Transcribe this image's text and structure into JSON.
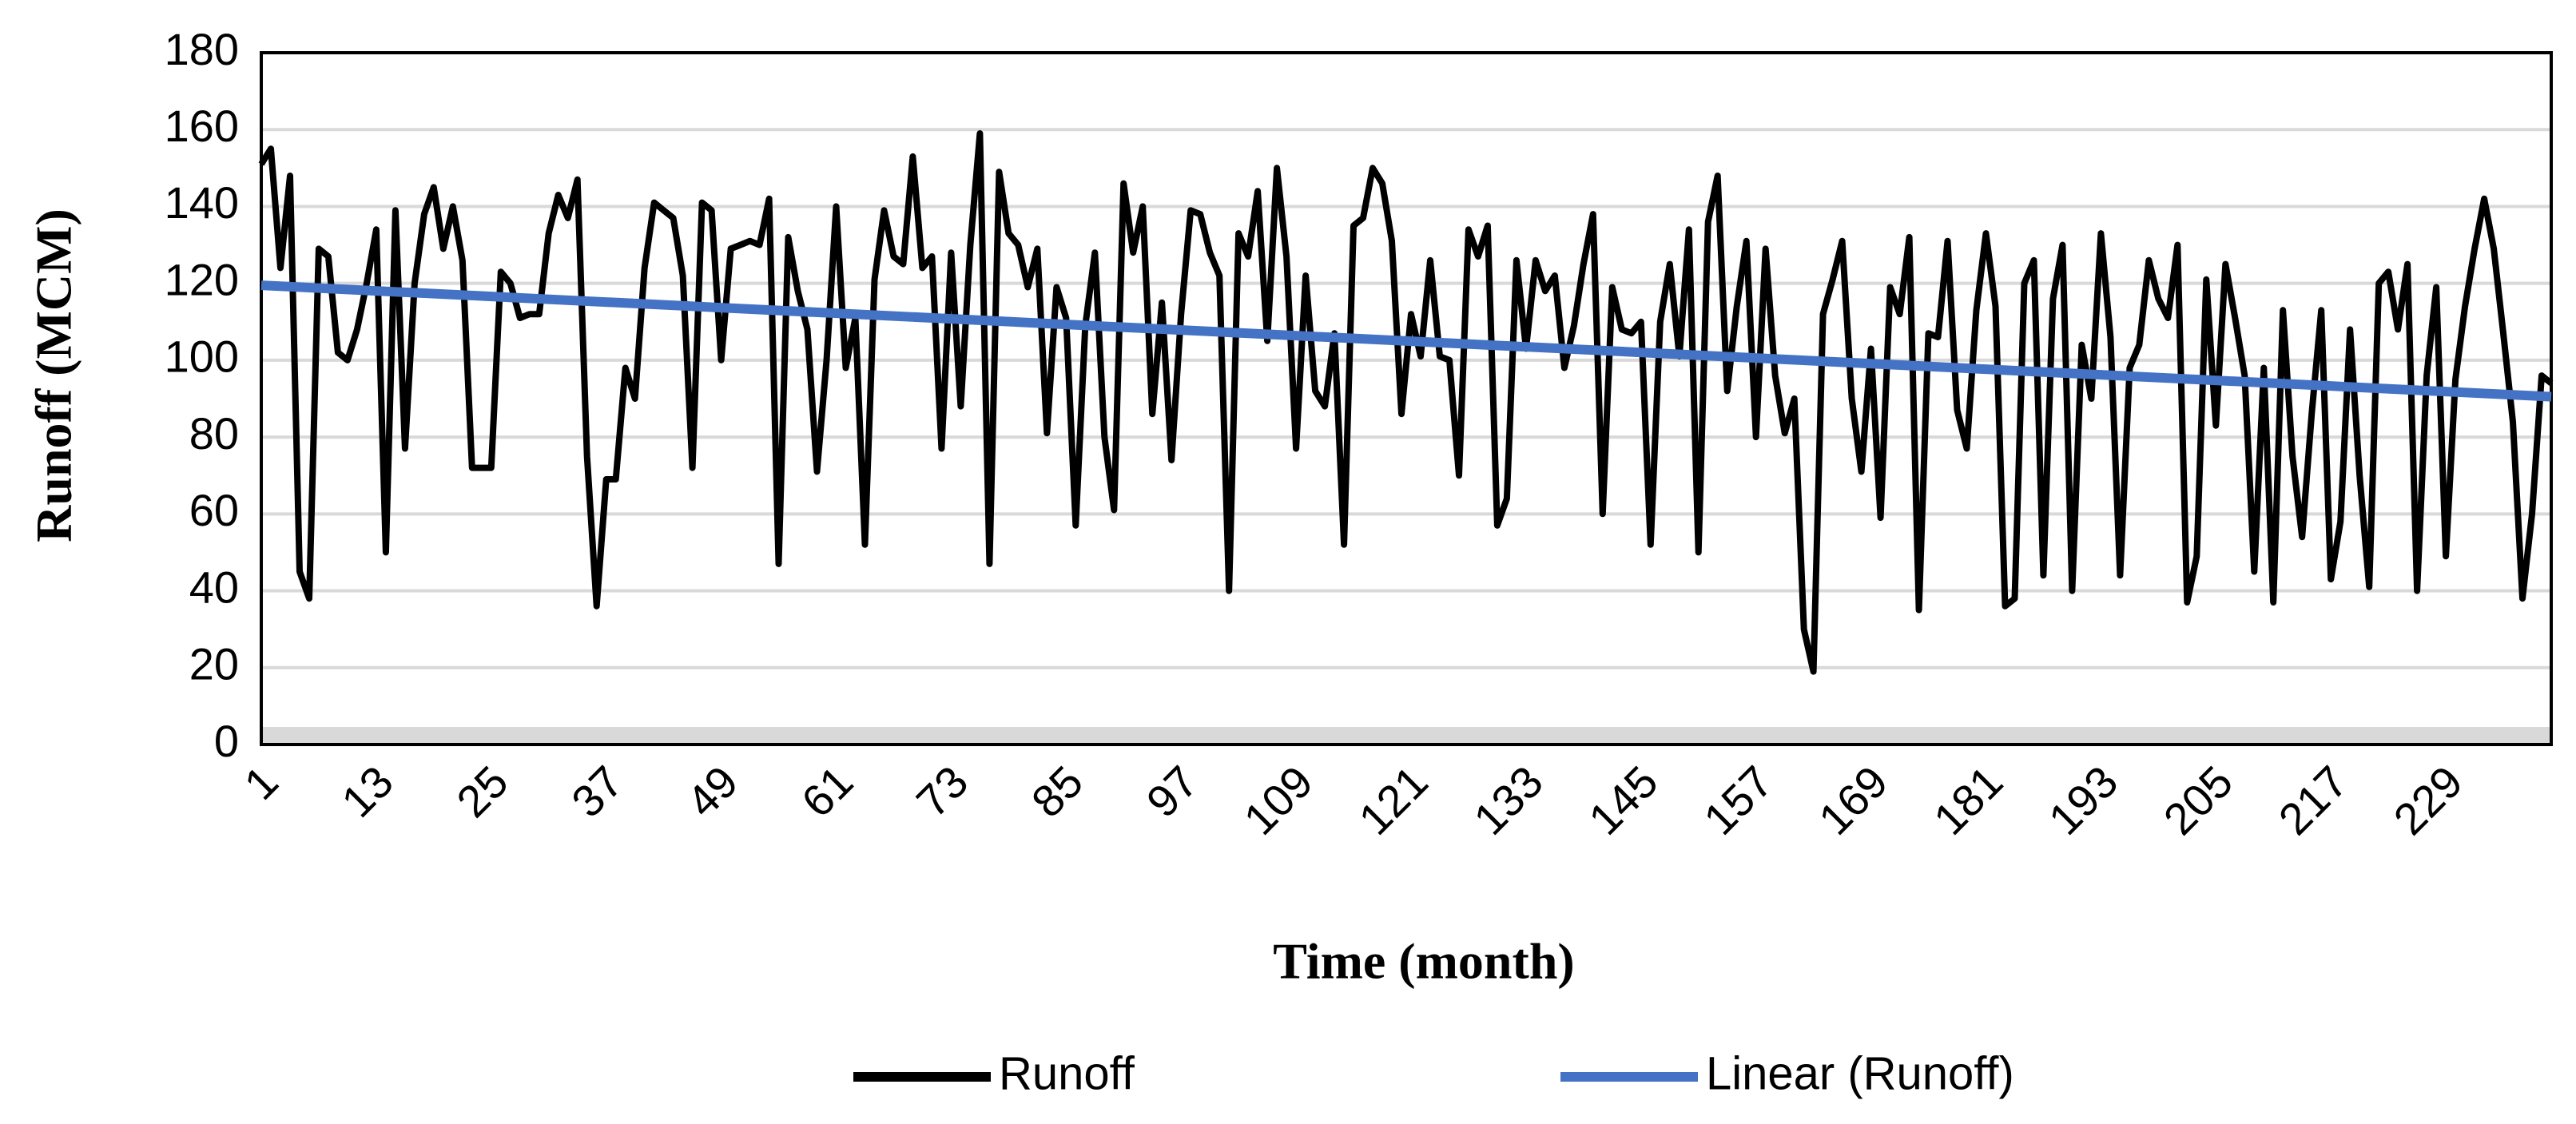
{
  "chart_data": {
    "type": "line",
    "x_label": "Time (month)",
    "y_label": "Runoff (MCM)",
    "x": [
      1,
      2,
      3,
      4,
      5,
      6,
      7,
      8,
      9,
      10,
      11,
      12,
      13,
      14,
      15,
      16,
      17,
      18,
      19,
      20,
      21,
      22,
      23,
      24,
      25,
      26,
      27,
      28,
      29,
      30,
      31,
      32,
      33,
      34,
      35,
      36,
      37,
      38,
      39,
      40,
      41,
      42,
      43,
      44,
      45,
      46,
      47,
      48,
      49,
      50,
      51,
      52,
      53,
      54,
      55,
      56,
      57,
      58,
      59,
      60,
      61,
      62,
      63,
      64,
      65,
      66,
      67,
      68,
      69,
      70,
      71,
      72,
      73,
      74,
      75,
      76,
      77,
      78,
      79,
      80,
      81,
      82,
      83,
      84,
      85,
      86,
      87,
      88,
      89,
      90,
      91,
      92,
      93,
      94,
      95,
      96,
      97,
      98,
      99,
      100,
      101,
      102,
      103,
      104,
      105,
      106,
      107,
      108,
      109,
      110,
      111,
      112,
      113,
      114,
      115,
      116,
      117,
      118,
      119,
      120,
      121,
      122,
      123,
      124,
      125,
      126,
      127,
      128,
      129,
      130,
      131,
      132,
      133,
      134,
      135,
      136,
      137,
      138,
      139,
      140,
      141,
      142,
      143,
      144,
      145,
      146,
      147,
      148,
      149,
      150,
      151,
      152,
      153,
      154,
      155,
      156,
      157,
      158,
      159,
      160,
      161,
      162,
      163,
      164,
      165,
      166,
      167,
      168,
      169,
      170,
      171,
      172,
      173,
      174,
      175,
      176,
      177,
      178,
      179,
      180,
      181,
      182,
      183,
      184,
      185,
      186,
      187,
      188,
      189,
      190,
      191,
      192,
      193,
      194,
      195,
      196,
      197,
      198,
      199,
      200,
      201,
      202,
      203,
      204,
      205,
      206,
      207,
      208,
      209,
      210,
      211,
      212,
      213,
      214,
      215,
      216,
      217,
      218,
      219,
      220,
      221,
      222,
      223,
      224,
      225,
      226,
      227,
      228,
      229,
      230,
      231,
      232,
      233,
      234,
      235,
      236,
      237,
      238,
      239,
      240
    ],
    "series": [
      {
        "name": "Runoff",
        "color": "#000000",
        "values": [
          151,
          155,
          124,
          148,
          45,
          38,
          129,
          127,
          102,
          100,
          108,
          120,
          134,
          50,
          139,
          77,
          120,
          138,
          145,
          129,
          140,
          126,
          72,
          72,
          72,
          123,
          120,
          111,
          112,
          112,
          133,
          143,
          137,
          147,
          75,
          36,
          69,
          69,
          98,
          90,
          124,
          141,
          139,
          137,
          122,
          72,
          141,
          139,
          100,
          129,
          130,
          131,
          130,
          142,
          47,
          132,
          118,
          108,
          71,
          100,
          140,
          98,
          111,
          52,
          121,
          139,
          127,
          125,
          153,
          124,
          127,
          77,
          128,
          88,
          130,
          159,
          47,
          149,
          133,
          130,
          119,
          129,
          81,
          119,
          111,
          57,
          109,
          128,
          80,
          61,
          146,
          128,
          140,
          86,
          115,
          74,
          112,
          139,
          138,
          128,
          122,
          40,
          133,
          127,
          144,
          105,
          150,
          127,
          77,
          122,
          92,
          88,
          107,
          52,
          135,
          137,
          150,
          146,
          131,
          86,
          112,
          101,
          126,
          101,
          100,
          70,
          134,
          127,
          135,
          57,
          64,
          126,
          103,
          126,
          118,
          122,
          98,
          109,
          125,
          138,
          60,
          119,
          108,
          107,
          110,
          52,
          110,
          125,
          101,
          134,
          50,
          136,
          148,
          92,
          114,
          131,
          80,
          129,
          96,
          81,
          90,
          30,
          19,
          112,
          121,
          131,
          90,
          71,
          103,
          59,
          119,
          112,
          132,
          35,
          107,
          106,
          131,
          87,
          77,
          113,
          133,
          114,
          36,
          38,
          120,
          126,
          44,
          116,
          130,
          40,
          104,
          90,
          133,
          106,
          44,
          98,
          104,
          126,
          116,
          111,
          130,
          37,
          49,
          121,
          83,
          125,
          111,
          96,
          45,
          98,
          37,
          113,
          75,
          54,
          86,
          113,
          43,
          58,
          108,
          70,
          41,
          120,
          123,
          108,
          125,
          40,
          96,
          119,
          49,
          95,
          114,
          129,
          142,
          129,
          107,
          84,
          38,
          60,
          96,
          94
        ]
      },
      {
        "name": "Linear (Runoff)",
        "color": "#4472c4",
        "x": [
          1,
          240
        ],
        "values": [
          119.5,
          90.5
        ]
      }
    ],
    "xlim": [
      1,
      240
    ],
    "xticks": [
      1,
      13,
      25,
      37,
      49,
      61,
      73,
      85,
      97,
      109,
      121,
      133,
      145,
      157,
      169,
      181,
      193,
      205,
      217,
      229
    ],
    "ylim": [
      0,
      180
    ],
    "yticks": [
      0,
      20,
      40,
      60,
      80,
      100,
      120,
      140,
      160,
      180
    ],
    "grid": true,
    "legend": "bottom"
  }
}
